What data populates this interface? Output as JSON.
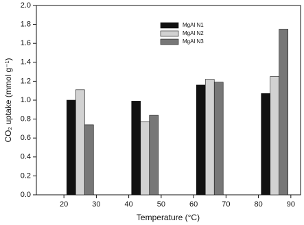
{
  "chart_data": {
    "type": "bar",
    "x": [
      25,
      45,
      65,
      85
    ],
    "series": [
      {
        "name": "MgAl N1",
        "color": "#111111",
        "values": [
          1.0,
          0.99,
          1.16,
          1.07
        ]
      },
      {
        "name": "MgAl N2",
        "color": "#d2d2d2",
        "values": [
          1.11,
          0.77,
          1.22,
          1.25
        ]
      },
      {
        "name": "MgAl N3",
        "color": "#777777",
        "values": [
          0.74,
          0.84,
          1.19,
          1.75
        ]
      }
    ],
    "xlabel": "Temperature (°C)",
    "ylabel": "CO₂ uptake (mmol g⁻¹)",
    "xlim": [
      11.5,
      93
    ],
    "xticks": [
      20,
      30,
      40,
      50,
      60,
      70,
      80,
      90
    ],
    "ylim": [
      0,
      2
    ],
    "yticks": [
      {
        "value": 0,
        "label": "0.0"
      },
      {
        "value": 0.2,
        "label": "0.2"
      },
      {
        "value": 0.4,
        "label": "0.4"
      },
      {
        "value": 0.6,
        "label": "0.6"
      },
      {
        "value": 0.8,
        "label": "0.8"
      },
      {
        "value": 1,
        "label": "1.0"
      },
      {
        "value": 1.2,
        "label": "1.2"
      },
      {
        "value": 1.4,
        "label": "1.4"
      },
      {
        "value": 1.6,
        "label": "1.6"
      },
      {
        "value": 1.8,
        "label": "1.8"
      },
      {
        "value": 2,
        "label": "2.0"
      }
    ],
    "legend": "top"
  }
}
